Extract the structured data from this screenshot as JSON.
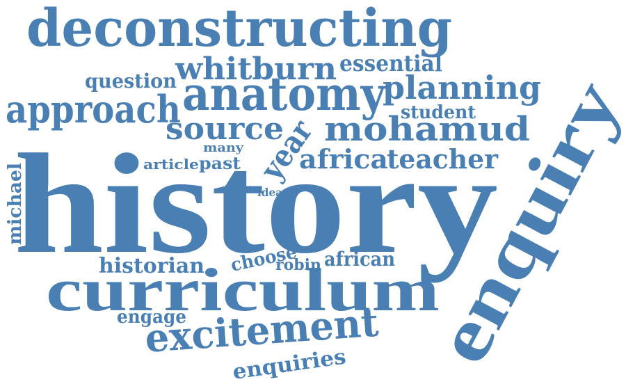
{
  "color": "#4a7fb4",
  "words": {
    "deconstructing": "deconstructing",
    "whitburn": "whitburn",
    "essential": "essential",
    "question": "question",
    "approach": "approach",
    "anatomy": "anatomy",
    "planning": "planning",
    "student": "student",
    "enquiry": "enquiry",
    "source": "source",
    "year": "year",
    "mohamud": "mohamud",
    "many": "many",
    "article": "article",
    "past": "past",
    "africa": "africa",
    "teacher": "teacher",
    "michael": "michael",
    "history": "history",
    "idea": "idea",
    "historian": "historian",
    "choose": "choose",
    "robin": "robin",
    "african": "african",
    "curriculum": "curriculum",
    "engage": "engage",
    "excitement": "excitement",
    "enquiries": "enquiries"
  }
}
